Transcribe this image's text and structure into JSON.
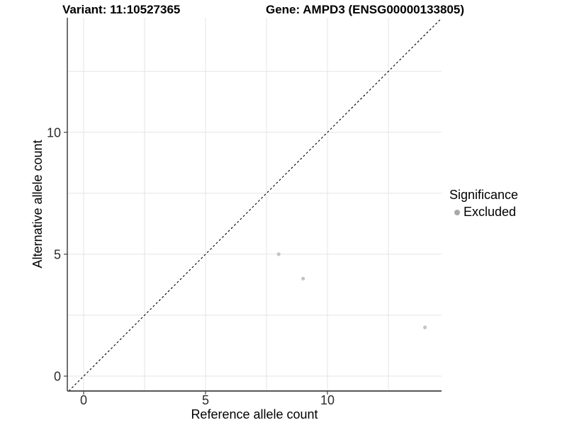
{
  "header": {
    "variant_title": "Variant: 11:10527365",
    "gene_title": "Gene: AMPD3 (ENSG00000133805)"
  },
  "chart_data": {
    "type": "scatter",
    "title": "Variant: 11:10527365  Gene: AMPD3 (ENSG00000133805)",
    "xlabel": "Reference allele count",
    "ylabel": "Alternative allele count",
    "xlim": [
      -0.67,
      14.68
    ],
    "ylim": [
      -0.61,
      14.7
    ],
    "x_ticks": [
      0,
      5,
      10
    ],
    "y_ticks": [
      0,
      5,
      10
    ],
    "x_gridlines": [
      0,
      2.5,
      5,
      7.5,
      10,
      12.5
    ],
    "y_gridlines": [
      0,
      2.5,
      5,
      7.5,
      10,
      12.5
    ],
    "grid": true,
    "identity_line": {
      "equation": "y = x",
      "style": "dashed"
    },
    "series": [
      {
        "name": "Excluded",
        "color": "#c4c4c4",
        "points": [
          {
            "x": 8,
            "y": 5
          },
          {
            "x": 9,
            "y": 4
          },
          {
            "x": 14,
            "y": 2
          }
        ]
      }
    ],
    "legend": {
      "title": "Significance",
      "position": "right",
      "entries": [
        {
          "label": "Excluded",
          "color": "#a9a9a9"
        }
      ]
    }
  },
  "colors": {
    "background": "#ffffff",
    "grid_color": "#e4e4e4",
    "axis_color": "#404040",
    "tick_text_color": "#2b2b2b",
    "identity_line_color": "#000000",
    "title_color": "#000000"
  }
}
